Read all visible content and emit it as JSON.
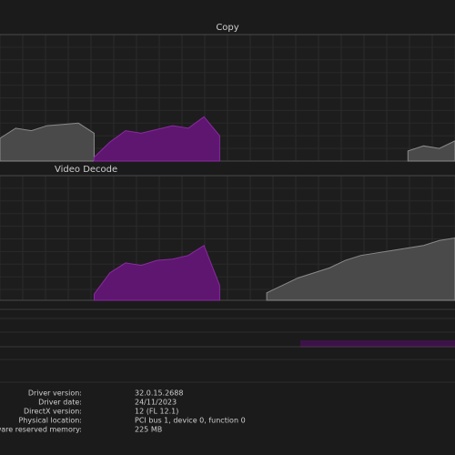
{
  "graphs": [
    {
      "label": "Copy",
      "series": [
        {
          "name": "gray",
          "color": "#4a4a4a",
          "values": [
            18,
            26,
            24,
            28,
            29,
            30,
            22,
            null,
            null,
            null,
            null,
            null,
            null,
            null,
            null,
            null,
            null,
            null,
            null,
            null,
            null,
            null,
            null,
            null,
            null,
            null,
            8,
            12,
            10,
            16
          ]
        },
        {
          "name": "purple",
          "color": "#5e1670",
          "values": [
            null,
            null,
            null,
            null,
            null,
            null,
            3,
            15,
            24,
            22,
            25,
            28,
            26,
            35,
            20,
            null,
            null,
            null,
            null,
            null,
            null,
            null,
            null,
            null,
            null,
            null,
            null,
            null,
            null,
            null
          ]
        }
      ]
    },
    {
      "label": "Video Decode",
      "series": [
        {
          "name": "gray",
          "color": "#4a4a4a",
          "values": [
            null,
            null,
            null,
            null,
            null,
            null,
            null,
            null,
            null,
            null,
            null,
            null,
            null,
            null,
            null,
            null,
            null,
            6,
            12,
            18,
            22,
            26,
            32,
            36,
            38,
            40,
            42,
            44,
            48,
            50
          ]
        },
        {
          "name": "purple",
          "color": "#5e1670",
          "values": [
            null,
            null,
            null,
            null,
            null,
            null,
            5,
            22,
            30,
            28,
            32,
            33,
            36,
            44,
            12,
            null,
            null,
            null,
            null,
            null,
            null,
            null,
            null,
            null,
            null,
            null,
            null,
            null,
            null,
            null
          ]
        }
      ]
    }
  ],
  "details": [
    [
      "Driver version:",
      "32.0.15.2688"
    ],
    [
      "Driver date:",
      "24/11/2023"
    ],
    [
      "DirectX version:",
      "12 (FL 12.1)"
    ],
    [
      "Physical location:",
      "PCI bus 1, device 0, function 0"
    ],
    [
      "Hardware reserved memory:",
      "225 MB"
    ]
  ]
}
